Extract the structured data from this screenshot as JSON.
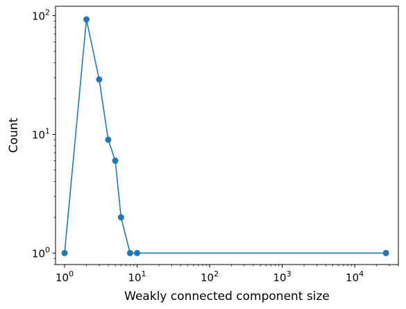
{
  "chart_data": {
    "type": "line",
    "title": "",
    "xlabel": "Weakly connected component size",
    "ylabel": "Count",
    "xscale": "log",
    "yscale": "log",
    "xlim": [
      0.75,
      40000
    ],
    "ylim": [
      0.8,
      120
    ],
    "grid": false,
    "color": "#1f77b4",
    "marker": "circle",
    "x_ticks": [
      {
        "base": "10",
        "exp": "0",
        "value": 1
      },
      {
        "base": "10",
        "exp": "1",
        "value": 10
      },
      {
        "base": "10",
        "exp": "2",
        "value": 100
      },
      {
        "base": "10",
        "exp": "3",
        "value": 1000
      },
      {
        "base": "10",
        "exp": "4",
        "value": 10000
      }
    ],
    "y_ticks": [
      {
        "base": "10",
        "exp": "0",
        "value": 1
      },
      {
        "base": "10",
        "exp": "1",
        "value": 10
      },
      {
        "base": "10",
        "exp": "2",
        "value": 100
      }
    ],
    "series": [
      {
        "x": [
          1,
          2,
          3,
          4,
          5,
          6,
          8,
          10,
          27000
        ],
        "y": [
          1,
          93,
          29,
          9,
          6,
          2,
          1,
          1,
          1
        ]
      }
    ]
  }
}
